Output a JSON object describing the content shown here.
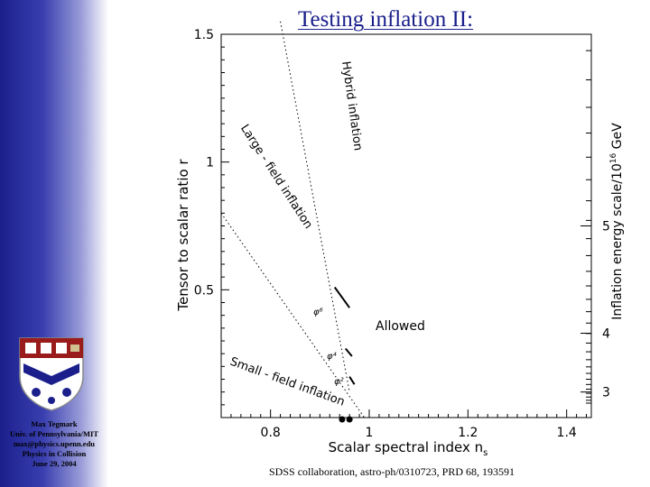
{
  "slide": {
    "title": "Testing inflation II:",
    "citation": "SDSS collaboration, astro-ph/0310723, PRD 68, 193591"
  },
  "sidebar": {
    "author_lines": [
      "Max Tegmark",
      "Univ. of Pennsylvania/MIT",
      "max@physics.upenn.edu",
      "Physics in Collision",
      "June 29, 2004"
    ]
  },
  "chart_data": {
    "type": "scatter",
    "title": "",
    "xlabel": "Scalar spectral index n",
    "xlabel_subscript": "s",
    "ylabel": "Tensor to scalar ratio r",
    "right_ylabel": "Inflation energy scale/10",
    "right_ylabel_exp": "16",
    "right_ylabel_unit": " GeV",
    "xlim": [
      0.7,
      1.45
    ],
    "ylim": [
      0,
      1.5
    ],
    "x_ticks": [
      {
        "v": 0.8,
        "label": "0.8"
      },
      {
        "v": 1.0,
        "label": "1"
      },
      {
        "v": 1.2,
        "label": "1.2"
      },
      {
        "v": 1.4,
        "label": "1.4"
      }
    ],
    "y_ticks": [
      {
        "v": 0.5,
        "label": "0.5"
      },
      {
        "v": 1.0,
        "label": "1"
      },
      {
        "v": 1.5,
        "label": "1.5"
      }
    ],
    "right_ticks": [
      {
        "r": 0.1,
        "label": "3"
      },
      {
        "r": 0.33,
        "label": "4"
      },
      {
        "r": 0.75,
        "label": "5"
      }
    ],
    "region_labels": {
      "hybrid": "Hybrid inflation",
      "large": "Large - field inflation",
      "small": "Small - field inflation",
      "allowed": "Allowed"
    },
    "dividers": [
      {
        "name": "hybrid-large-boundary",
        "points": [
          [
            0.82,
            1.55
          ],
          [
            0.96,
            0.1
          ]
        ]
      },
      {
        "name": "large-small-boundary",
        "points": [
          [
            0.7,
            0.8
          ],
          [
            0.99,
            0.0
          ]
        ]
      }
    ],
    "models": [
      {
        "name": "phi6",
        "label": "φ⁶",
        "points": [
          [
            0.93,
            0.51
          ],
          [
            0.96,
            0.43
          ]
        ]
      },
      {
        "name": "phi4",
        "label": "φ⁴",
        "points": [
          [
            0.952,
            0.27
          ],
          [
            0.965,
            0.24
          ]
        ]
      },
      {
        "name": "phi2",
        "label": "φ²",
        "points": [
          [
            0.96,
            0.16
          ],
          [
            0.97,
            0.13
          ]
        ]
      }
    ],
    "data_points": [
      {
        "n": 0.945,
        "r": 0.0
      },
      {
        "n": 0.96,
        "r": 0.0
      }
    ]
  }
}
